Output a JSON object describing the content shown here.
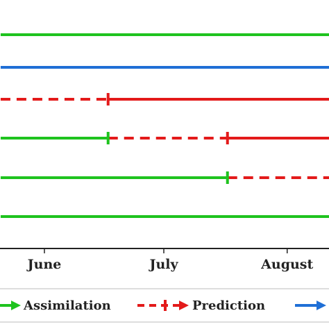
{
  "chart_data": {
    "type": "line",
    "x_axis": {
      "scale": "time",
      "ticks": [
        {
          "label": "June",
          "date": "06-01"
        },
        {
          "label": "July",
          "date": "07-01"
        },
        {
          "label": "August",
          "date": "08-01"
        }
      ],
      "visible_range": [
        "05-21",
        "08-13"
      ]
    },
    "legend": {
      "placement": "bottom",
      "entries": [
        {
          "label": "Assimilation",
          "color": "#1ec31e",
          "style": "solid",
          "marker": "arrow"
        },
        {
          "label": "Prediction",
          "color": "#e31a1a",
          "style": "dashed",
          "marker": "arrow-with-bar"
        },
        {
          "label": "",
          "color": "#1f6fd6",
          "style": "solid",
          "marker": "arrow"
        }
      ]
    },
    "rows": [
      {
        "segments": [
          {
            "mode": "assimilation",
            "start": "05-21",
            "end": "08-13"
          }
        ]
      },
      {
        "segments": [
          {
            "mode": "blue",
            "start": "05-21",
            "end": "08-13"
          }
        ]
      },
      {
        "segments": [
          {
            "mode": "prediction",
            "start": "05-21",
            "end": "06-17"
          },
          {
            "mode": "observation",
            "start": "06-17",
            "end": "08-13"
          }
        ],
        "markers": [
          {
            "date": "06-17",
            "color": "#e31a1a"
          }
        ]
      },
      {
        "segments": [
          {
            "mode": "assimilation",
            "start": "05-21",
            "end": "06-17"
          },
          {
            "mode": "prediction",
            "start": "06-17",
            "end": "07-17"
          },
          {
            "mode": "observation",
            "start": "07-17",
            "end": "08-13"
          }
        ],
        "markers": [
          {
            "date": "06-17",
            "color": "#1ec31e"
          },
          {
            "date": "07-17",
            "color": "#e31a1a"
          }
        ]
      },
      {
        "segments": [
          {
            "mode": "assimilation",
            "start": "05-21",
            "end": "07-17"
          },
          {
            "mode": "prediction",
            "start": "07-17",
            "end": "08-13"
          }
        ],
        "markers": [
          {
            "date": "07-17",
            "color": "#1ec31e"
          }
        ]
      },
      {
        "segments": [
          {
            "mode": "assimilation",
            "start": "05-21",
            "end": "08-13"
          }
        ]
      }
    ],
    "colors": {
      "assimilation": "#1ec31e",
      "prediction": "#e31a1a",
      "observation": "#e31a1a",
      "blue": "#1f6fd6",
      "axis": "#222222"
    }
  }
}
